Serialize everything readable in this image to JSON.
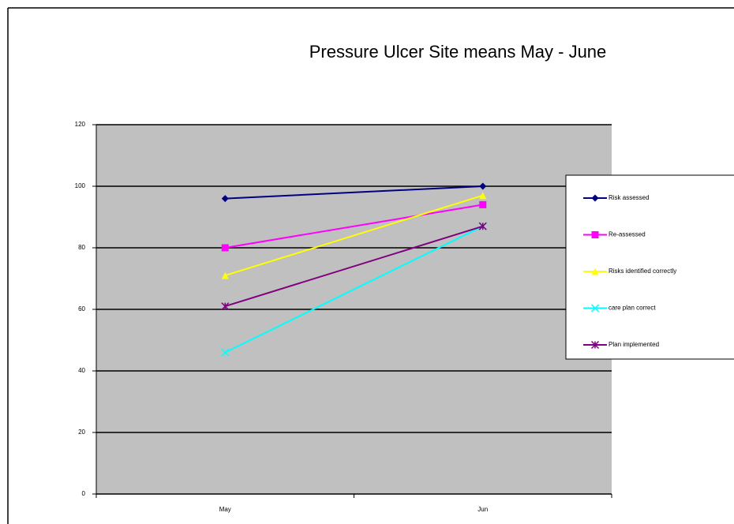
{
  "chart_data": {
    "type": "line",
    "title": "Pressure Ulcer Site means May - June",
    "categories": [
      "May",
      "Jun"
    ],
    "series": [
      {
        "name": "Risk assessed",
        "color": "#000080",
        "values": [
          96,
          100
        ]
      },
      {
        "name": "Re-assessed",
        "color": "#ff00ff",
        "values": [
          80,
          94
        ]
      },
      {
        "name": "Risks identified correctly",
        "color": "#ffff00",
        "values": [
          71,
          97
        ]
      },
      {
        "name": "care plan correct",
        "color": "#00ffff",
        "values": [
          46,
          87
        ]
      },
      {
        "name": "Plan implemented",
        "color": "#800080",
        "values": [
          61,
          87
        ]
      }
    ],
    "ylim": [
      0,
      120
    ],
    "yticks": [
      0,
      20,
      40,
      60,
      80,
      100,
      120
    ],
    "grid": true,
    "legend": "right"
  }
}
